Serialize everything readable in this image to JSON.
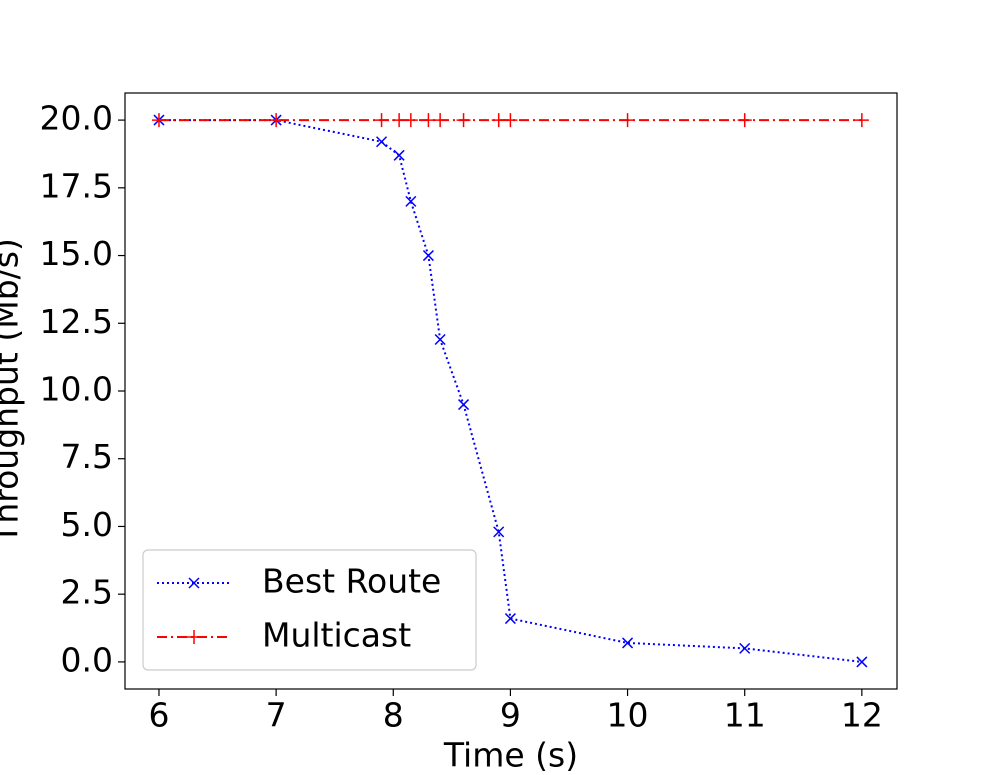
{
  "chart_data": {
    "type": "line",
    "x_label": "Time (s)",
    "y_label": "Throughput (Mb/s)",
    "x": [
      6,
      7,
      7.9,
      8.05,
      8.15,
      8.3,
      8.4,
      8.6,
      8.9,
      9,
      10,
      11,
      12
    ],
    "series": [
      {
        "name": "Best Route",
        "color": "#0000ff",
        "linestyle": "dotted",
        "marker": "x",
        "values": [
          20,
          20,
          19.2,
          18.7,
          17.0,
          15.0,
          11.9,
          9.5,
          4.8,
          1.6,
          0.7,
          0.5,
          0
        ]
      },
      {
        "name": "Multicast",
        "color": "#ff0000",
        "linestyle": "dashdot",
        "marker": "+",
        "values": [
          20,
          20,
          20,
          20,
          20,
          20,
          20,
          20,
          20,
          20,
          20,
          20,
          20
        ]
      }
    ],
    "xlim": [
      5.71,
      12.3
    ],
    "ylim": [
      -1.0,
      21.0
    ],
    "xticks": [
      6,
      7,
      8,
      9,
      10,
      11,
      12
    ],
    "yticks": [
      {
        "value": 0,
        "label": "0.0"
      },
      2.5,
      {
        "value": 5,
        "label": "5.0"
      },
      7.5,
      {
        "value": 10,
        "label": "10.0"
      },
      12.5,
      {
        "value": 15,
        "label": "15.0"
      },
      17.5,
      {
        "value": 20,
        "label": "20.0"
      }
    ],
    "grid": false,
    "legend": "lower left"
  }
}
